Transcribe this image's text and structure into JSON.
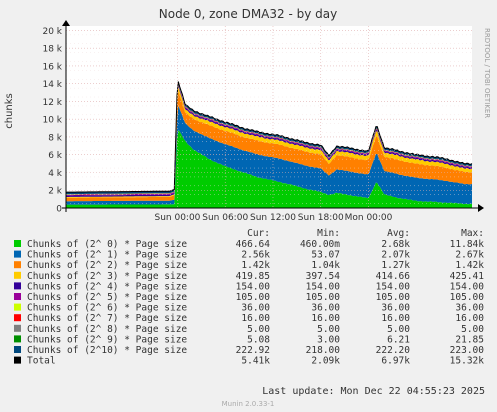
{
  "chart_data": {
    "type": "area",
    "title": "Node 0, zone DMA32 - by day",
    "ylabel": "chunks",
    "side_label": "RRDTOOL / TOBI OETIKER",
    "x_ticks": [
      "Sun 00:00",
      "Sun 06:00",
      "Sun 12:00",
      "Sun 18:00",
      "Mon 00:00"
    ],
    "y_ticks": [
      "0",
      "2 k",
      "4 k",
      "6 k",
      "8 k",
      "10 k",
      "12 k",
      "14 k",
      "16 k",
      "18 k",
      "20 k"
    ],
    "ylim": [
      0,
      20500
    ],
    "x_range_hours": [
      -14,
      37
    ],
    "x_tick_hours": [
      0,
      6,
      12,
      18,
      24
    ],
    "stacked": true,
    "total_profile": {
      "x_hours": [
        -14,
        -2,
        -1,
        -0.4,
        0,
        1,
        2,
        4,
        6,
        8,
        10,
        12,
        14,
        16,
        18,
        19,
        20,
        22,
        24,
        25,
        26,
        28,
        30,
        32,
        34,
        36
      ],
      "total": [
        2200,
        2300,
        2300,
        2500,
        15000,
        12000,
        11400,
        10700,
        10100,
        9500,
        9000,
        8700,
        8300,
        7800,
        7500,
        6300,
        7400,
        7100,
        6800,
        9800,
        7200,
        6800,
        6400,
        6200,
        5900,
        5400
      ],
      "order0": [
        380,
        400,
        400,
        420,
        9000,
        7500,
        6600,
        5500,
        4700,
        4100,
        3500,
        3100,
        2700,
        2200,
        1800,
        1500,
        1700,
        1400,
        1100,
        3000,
        1500,
        1100,
        800,
        700,
        600,
        470
      ]
    },
    "columns": [
      "Cur:",
      "Min:",
      "Avg:",
      "Max:"
    ],
    "series": [
      {
        "name": "Chunks of (2^ 0) * Page size",
        "color": "#00cc00",
        "cur": "466.64",
        "min": "460.00m",
        "avg": "2.68k",
        "max": "11.84k"
      },
      {
        "name": "Chunks of (2^ 1) * Page size",
        "color": "#0066b3",
        "cur": "2.56k",
        "min": "53.07",
        "avg": "2.07k",
        "max": "2.67k"
      },
      {
        "name": "Chunks of (2^ 2) * Page size",
        "color": "#ff8000",
        "cur": "1.42k",
        "min": "1.04k",
        "avg": "1.27k",
        "max": "1.42k"
      },
      {
        "name": "Chunks of (2^ 3) * Page size",
        "color": "#ffcc00",
        "cur": "419.85",
        "min": "397.54",
        "avg": "414.66",
        "max": "425.41"
      },
      {
        "name": "Chunks of (2^ 4) * Page size",
        "color": "#330099",
        "cur": "154.00",
        "min": "154.00",
        "avg": "154.00",
        "max": "154.00"
      },
      {
        "name": "Chunks of (2^ 5) * Page size",
        "color": "#990099",
        "cur": "105.00",
        "min": "105.00",
        "avg": "105.00",
        "max": "105.00"
      },
      {
        "name": "Chunks of (2^ 6) * Page size",
        "color": "#ccff00",
        "cur": "36.00",
        "min": "36.00",
        "avg": "36.00",
        "max": "36.00"
      },
      {
        "name": "Chunks of (2^ 7) * Page size",
        "color": "#ff0000",
        "cur": "16.00",
        "min": "16.00",
        "avg": "16.00",
        "max": "16.00"
      },
      {
        "name": "Chunks of (2^ 8) * Page size",
        "color": "#808080",
        "cur": "5.00",
        "min": "5.00",
        "avg": "5.00",
        "max": "5.00"
      },
      {
        "name": "Chunks of (2^ 9) * Page size",
        "color": "#008f00",
        "cur": "5.08",
        "min": "3.00",
        "avg": "6.21",
        "max": "21.85"
      },
      {
        "name": "Chunks of (2^10) * Page size",
        "color": "#00487d",
        "cur": "222.92",
        "min": "218.00",
        "avg": "222.20",
        "max": "223.00"
      },
      {
        "name": "Total",
        "color": "#000000",
        "cur": "5.41k",
        "min": "2.09k",
        "avg": "6.97k",
        "max": "15.32k"
      }
    ]
  },
  "footer": {
    "last_update": "Last update:  Mon Dec 22 04:55:23 2025",
    "version": "Munin 2.0.33-1"
  },
  "colors": {
    "background": "#f0f0f0",
    "plot_background": "#ffffff",
    "grid": "#e0b0b0",
    "axis": "#000000"
  }
}
